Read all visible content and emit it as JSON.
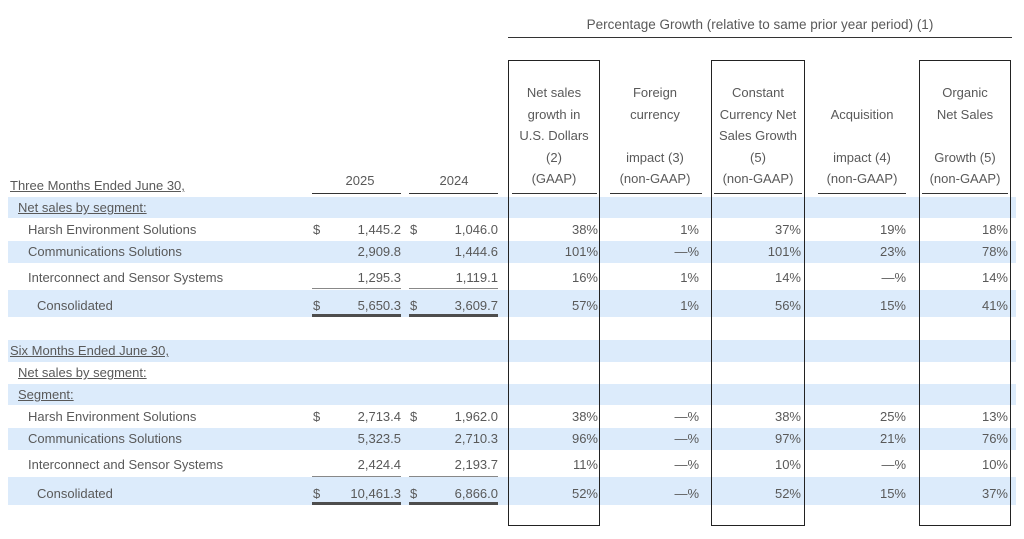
{
  "group_header": "Percentage Growth (relative to same prior year period) (1)",
  "columns": {
    "col_2025": "2025",
    "col_2024": "2024",
    "net_sales_growth": [
      "Net sales",
      "growth in",
      "U.S. Dollars",
      "(2)",
      "(GAAP)"
    ],
    "foreign_currency": [
      "Foreign",
      "currency",
      "",
      "impact (3)",
      "(non-GAAP)"
    ],
    "constant_currency": [
      "Constant",
      "Currency Net",
      "Sales Growth",
      "(5)",
      "(non-GAAP)"
    ],
    "acquisition": [
      "",
      "Acquisition",
      "",
      "impact (4)",
      "(non-GAAP)"
    ],
    "organic": [
      "Organic",
      "Net Sales",
      "",
      "Growth (5)",
      "(non-GAAP)"
    ]
  },
  "three_months": {
    "title": "Three Months Ended June 30,",
    "subtitle": "Net sales by segment:",
    "rows": [
      {
        "label": "Harsh Environment Solutions",
        "cur1": "$",
        "v2025": "1,445.2",
        "cur2": "$",
        "v2024": "1,046.0",
        "g": "38%",
        "fx": "1%",
        "cc": "37%",
        "acq": "19%",
        "org": "18%"
      },
      {
        "label": "Communications Solutions",
        "cur1": "",
        "v2025": "2,909.8",
        "cur2": "",
        "v2024": "1,444.6",
        "g": "101%",
        "fx": "—%",
        "cc": "101%",
        "acq": "23%",
        "org": "78%"
      },
      {
        "label": "Interconnect and Sensor Systems",
        "cur1": "",
        "v2025": "1,295.3",
        "cur2": "",
        "v2024": "1,119.1",
        "g": "16%",
        "fx": "1%",
        "cc": "14%",
        "acq": "—%",
        "org": "14%"
      },
      {
        "label": "Consolidated",
        "cur1": "$",
        "v2025": "5,650.3",
        "cur2": "$",
        "v2024": "3,609.7",
        "g": "57%",
        "fx": "1%",
        "cc": "56%",
        "acq": "15%",
        "org": "41%"
      }
    ]
  },
  "six_months": {
    "title": "Six Months Ended June 30,",
    "subtitle": "Net sales by segment:",
    "subtitle2": "Segment:",
    "rows": [
      {
        "label": "Harsh Environment Solutions",
        "cur1": "$",
        "v2025": "2,713.4",
        "cur2": "$",
        "v2024": "1,962.0",
        "g": "38%",
        "fx": "—%",
        "cc": "38%",
        "acq": "25%",
        "org": "13%"
      },
      {
        "label": "Communications Solutions",
        "cur1": "",
        "v2025": "5,323.5",
        "cur2": "",
        "v2024": "2,710.3",
        "g": "96%",
        "fx": "—%",
        "cc": "97%",
        "acq": "21%",
        "org": "76%"
      },
      {
        "label": "Interconnect and Sensor Systems",
        "cur1": "",
        "v2025": "2,424.4",
        "cur2": "",
        "v2024": "2,193.7",
        "g": "11%",
        "fx": "—%",
        "cc": "10%",
        "acq": "—%",
        "org": "10%"
      },
      {
        "label": "Consolidated",
        "cur1": "$",
        "v2025": "10,461.3",
        "cur2": "$",
        "v2024": "6,866.0",
        "g": "52%",
        "fx": "—%",
        "cc": "52%",
        "acq": "15%",
        "org": "37%"
      }
    ]
  }
}
